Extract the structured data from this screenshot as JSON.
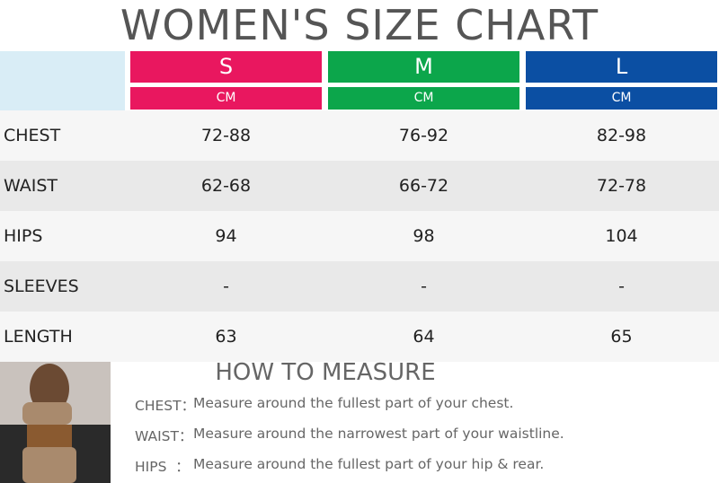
{
  "title": "WOMEN'S SIZE CHART",
  "sizes": [
    {
      "name": "S",
      "unit": "CM",
      "color": "#e9175f"
    },
    {
      "name": "M",
      "unit": "CM",
      "color": "#0ca64b"
    },
    {
      "name": "L",
      "unit": "CM",
      "color": "#0b4fa3"
    }
  ],
  "table": {
    "rows": [
      {
        "label": "CHEST",
        "values": [
          "72-88",
          "76-92",
          "82-98"
        ]
      },
      {
        "label": "WAIST",
        "values": [
          "62-68",
          "66-72",
          "72-78"
        ]
      },
      {
        "label": "HIPS",
        "values": [
          "94",
          "98",
          "104"
        ]
      },
      {
        "label": "SLEEVES",
        "values": [
          "-",
          "-",
          "-"
        ]
      },
      {
        "label": "LENGTH",
        "values": [
          "63",
          "64",
          "65"
        ]
      }
    ]
  },
  "measure": {
    "title": "HOW TO MEASURE",
    "items": [
      {
        "label": "CHEST：",
        "text": "Measure around the fullest part of your chest."
      },
      {
        "label": "WAIST：",
        "text": "Measure around the narrowest part of your waistline."
      },
      {
        "label": "HIPS  ：",
        "text": "Measure around the fullest part of your hip & rear."
      }
    ]
  }
}
